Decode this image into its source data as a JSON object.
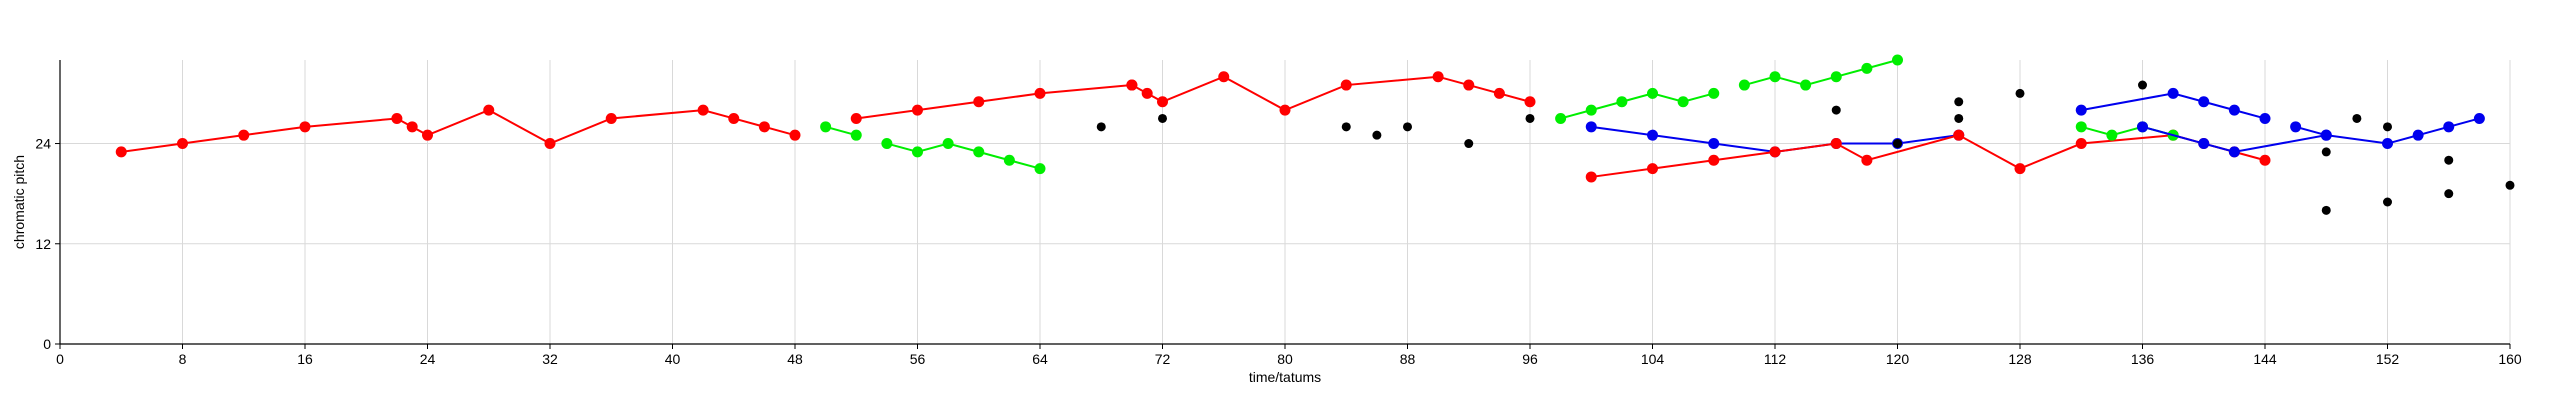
{
  "chart_data": {
    "type": "scatter",
    "xlabel": "time/tatums",
    "ylabel": "chromatic pitch",
    "xlim": [
      0,
      160
    ],
    "ylim": [
      0,
      34
    ],
    "xticks": [
      0,
      8,
      16,
      24,
      32,
      40,
      48,
      56,
      64,
      72,
      80,
      88,
      96,
      104,
      112,
      120,
      128,
      136,
      144,
      152,
      160
    ],
    "yticks": [
      0,
      12,
      24
    ],
    "grid": true,
    "colors": {
      "red": "#ff0000",
      "green": "#00ee00",
      "blue": "#0000ee",
      "black": "#000000"
    },
    "series": [
      {
        "color": "red",
        "connected": true,
        "points": [
          [
            4,
            23
          ],
          [
            8,
            24
          ],
          [
            12,
            25
          ],
          [
            16,
            26
          ],
          [
            22,
            27
          ],
          [
            23,
            26
          ],
          [
            24,
            25
          ],
          [
            28,
            28
          ],
          [
            32,
            24
          ],
          [
            36,
            27
          ],
          [
            42,
            28
          ],
          [
            44,
            27
          ],
          [
            46,
            26
          ],
          [
            48,
            25
          ]
        ]
      },
      {
        "color": "green",
        "connected": true,
        "points": [
          [
            50,
            26
          ],
          [
            52,
            25
          ]
        ]
      },
      {
        "color": "green",
        "connected": true,
        "points": [
          [
            54,
            24
          ],
          [
            56,
            23
          ],
          [
            58,
            24
          ],
          [
            60,
            23
          ],
          [
            62,
            22
          ],
          [
            64,
            21
          ]
        ]
      },
      {
        "color": "red",
        "connected": true,
        "points": [
          [
            52,
            27
          ],
          [
            56,
            28
          ],
          [
            60,
            29
          ],
          [
            64,
            30
          ],
          [
            70,
            31
          ],
          [
            70,
            31
          ],
          [
            71,
            30
          ],
          [
            72,
            29
          ],
          [
            76,
            32
          ],
          [
            80,
            28
          ],
          [
            84,
            31
          ],
          [
            90,
            32
          ],
          [
            92,
            31
          ],
          [
            94,
            30
          ],
          [
            96,
            29
          ]
        ]
      },
      {
        "color": "black",
        "connected": false,
        "points": [
          [
            68,
            26
          ],
          [
            72,
            27
          ],
          [
            84,
            26
          ],
          [
            86,
            25
          ],
          [
            88,
            26
          ],
          [
            92,
            24
          ],
          [
            96,
            27
          ]
        ]
      },
      {
        "color": "green",
        "connected": true,
        "points": [
          [
            98,
            27
          ],
          [
            100,
            28
          ],
          [
            102,
            29
          ],
          [
            104,
            30
          ],
          [
            106,
            29
          ],
          [
            108,
            30
          ]
        ]
      },
      {
        "color": "green",
        "connected": true,
        "points": [
          [
            110,
            31
          ],
          [
            112,
            32
          ],
          [
            114,
            31
          ],
          [
            116,
            32
          ],
          [
            118,
            33
          ],
          [
            120,
            34
          ]
        ]
      },
      {
        "color": "blue",
        "connected": true,
        "points": [
          [
            100,
            26
          ],
          [
            104,
            25
          ],
          [
            108,
            24
          ],
          [
            112,
            23
          ],
          [
            116,
            24
          ],
          [
            120,
            24
          ],
          [
            124,
            25
          ]
        ]
      },
      {
        "color": "red",
        "connected": true,
        "points": [
          [
            100,
            20
          ],
          [
            104,
            21
          ],
          [
            108,
            22
          ],
          [
            112,
            23
          ],
          [
            116,
            24
          ],
          [
            118,
            22
          ],
          [
            124,
            25
          ],
          [
            128,
            21
          ],
          [
            132,
            24
          ],
          [
            138,
            25
          ],
          [
            140,
            24
          ],
          [
            142,
            23
          ],
          [
            144,
            22
          ]
        ]
      },
      {
        "color": "black",
        "connected": false,
        "points": [
          [
            116,
            28
          ],
          [
            120,
            24
          ],
          [
            124,
            27
          ],
          [
            124,
            29
          ],
          [
            128,
            30
          ],
          [
            136,
            31
          ],
          [
            148,
            23
          ],
          [
            148,
            16
          ],
          [
            150,
            27
          ],
          [
            152,
            26
          ],
          [
            152,
            17
          ],
          [
            156,
            22
          ],
          [
            156,
            18
          ],
          [
            160,
            19
          ]
        ]
      },
      {
        "color": "green",
        "connected": true,
        "points": [
          [
            132,
            26
          ],
          [
            134,
            25
          ],
          [
            136,
            26
          ],
          [
            138,
            25
          ]
        ]
      },
      {
        "color": "blue",
        "connected": true,
        "points": [
          [
            132,
            28
          ],
          [
            138,
            30
          ],
          [
            140,
            29
          ],
          [
            142,
            28
          ],
          [
            144,
            27
          ]
        ]
      },
      {
        "color": "blue",
        "connected": true,
        "points": [
          [
            136,
            26
          ],
          [
            140,
            24
          ],
          [
            142,
            23
          ],
          [
            148,
            25
          ],
          [
            152,
            24
          ],
          [
            154,
            25
          ],
          [
            156,
            26
          ],
          [
            158,
            27
          ]
        ]
      },
      {
        "color": "blue",
        "connected": true,
        "points": [
          [
            146,
            26
          ],
          [
            148,
            25
          ]
        ]
      }
    ]
  }
}
